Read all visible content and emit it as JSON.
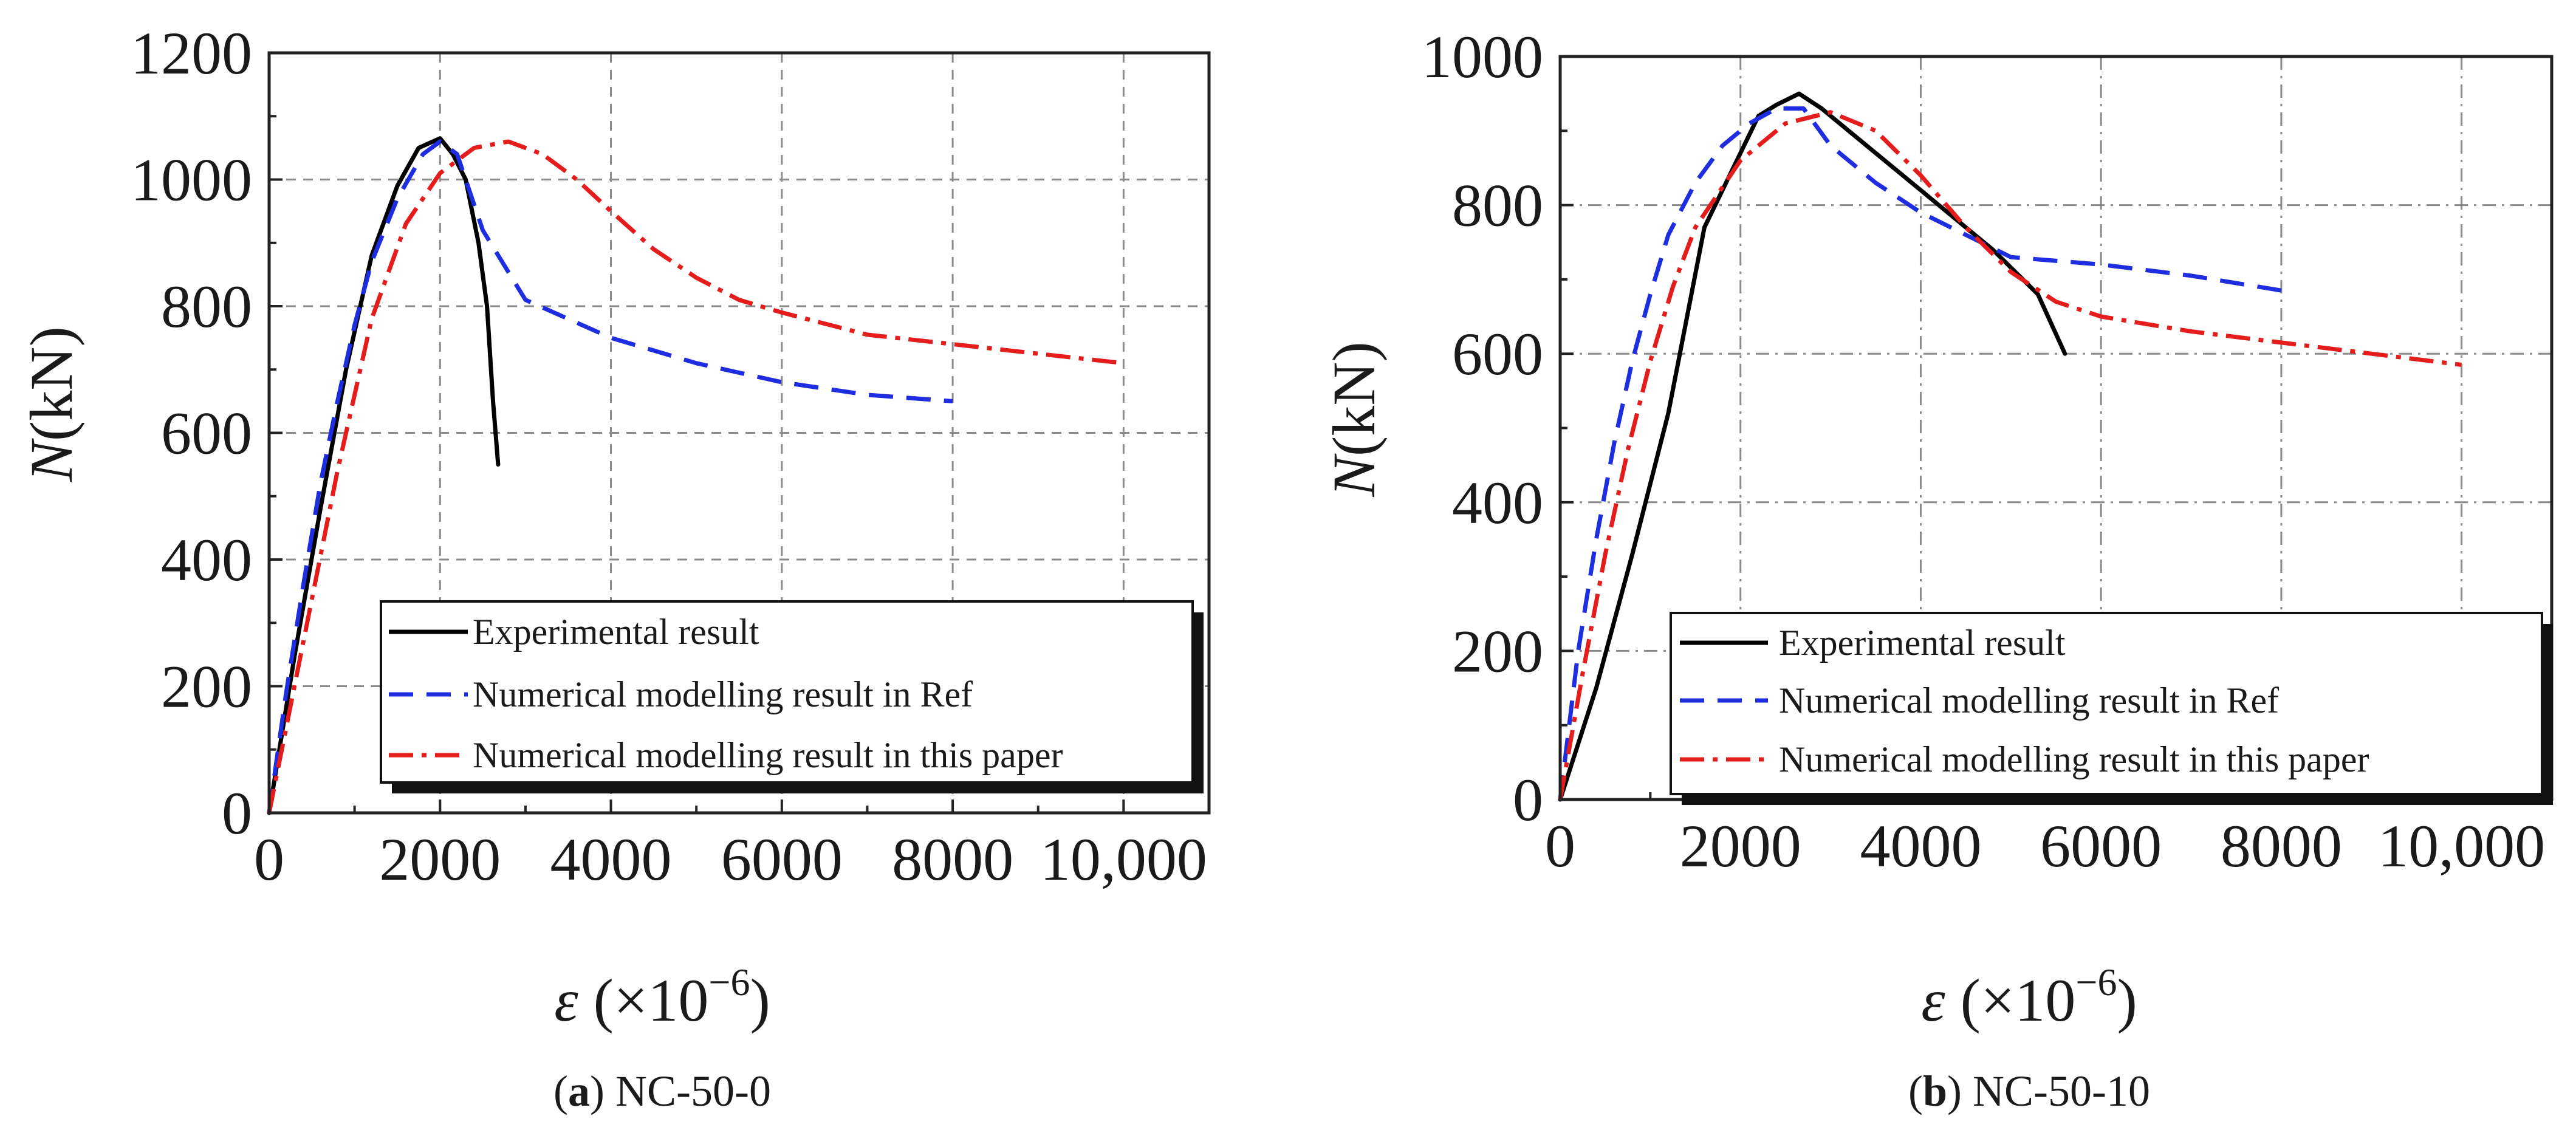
{
  "chart_data": [
    {
      "type": "line",
      "panel_id": "a",
      "caption_letter": "a",
      "caption_text": " NC-50-0",
      "xlabel_symbol": "ε",
      "xlabel_unit": " (×10",
      "xlabel_exp": "−6",
      "xlabel_close": ")",
      "ylabel_symbol": "N",
      "ylabel_unit": "(kN)",
      "xlim": [
        0,
        11000
      ],
      "ylim": [
        0,
        1200
      ],
      "x_ticks": [
        0,
        2000,
        4000,
        6000,
        8000,
        10000
      ],
      "x_tick_labels": [
        "0",
        "2000",
        "4000",
        "6000",
        "8000",
        "10,000"
      ],
      "y_ticks": [
        0,
        200,
        400,
        600,
        800,
        1000,
        1200
      ],
      "y_tick_labels": [
        "0",
        "200",
        "400",
        "600",
        "800",
        "1000",
        "1200"
      ],
      "grid": true,
      "legend_position": "bottom-right",
      "series": [
        {
          "name": "Experimental result",
          "color": "#000000",
          "dash": "solid",
          "x": [
            0,
            300,
            600,
            900,
            1200,
            1500,
            1750,
            2000,
            2150,
            2300,
            2450,
            2550,
            2620,
            2680
          ],
          "y": [
            0,
            250,
            480,
            700,
            880,
            990,
            1050,
            1065,
            1040,
            1000,
            900,
            800,
            650,
            550
          ]
        },
        {
          "name": "Numerical modelling result in Ref",
          "color": "#1f2de0",
          "dash": "dashed",
          "x": [
            0,
            200,
            400,
            600,
            800,
            1000,
            1200,
            1500,
            1800,
            2000,
            2200,
            2500,
            3000,
            3500,
            4000,
            5000,
            6000,
            7000,
            8000
          ],
          "y": [
            0,
            190,
            360,
            520,
            650,
            770,
            870,
            970,
            1040,
            1060,
            1040,
            920,
            810,
            780,
            750,
            710,
            680,
            660,
            650
          ]
        },
        {
          "name": "Numerical modelling result in this paper",
          "color": "#e51c1c",
          "dash": "dashdot",
          "x": [
            0,
            400,
            800,
            1200,
            1600,
            2000,
            2400,
            2800,
            3200,
            3600,
            4000,
            4500,
            5000,
            5500,
            6000,
            7000,
            8000,
            9000,
            10000
          ],
          "y": [
            0,
            270,
            540,
            780,
            930,
            1010,
            1050,
            1060,
            1040,
            1000,
            950,
            890,
            845,
            810,
            790,
            755,
            740,
            725,
            710
          ]
        }
      ]
    },
    {
      "type": "line",
      "panel_id": "b",
      "caption_letter": "b",
      "caption_text": " NC-50-10",
      "xlabel_symbol": "ε",
      "xlabel_unit": " (×10",
      "xlabel_exp": "−6",
      "xlabel_close": ")",
      "ylabel_symbol": "N",
      "ylabel_unit": "(kN)",
      "xlim": [
        0,
        11000
      ],
      "ylim": [
        0,
        1000
      ],
      "x_ticks": [
        0,
        2000,
        4000,
        6000,
        8000,
        10000
      ],
      "x_tick_labels": [
        "0",
        "2000",
        "4000",
        "6000",
        "8000",
        "10,000"
      ],
      "y_ticks": [
        0,
        200,
        400,
        600,
        800,
        1000
      ],
      "y_tick_labels": [
        "0",
        "200",
        "400",
        "600",
        "800",
        "1000"
      ],
      "grid": true,
      "legend_position": "bottom-right",
      "series": [
        {
          "name": "Experimental result",
          "color": "#000000",
          "dash": "solid",
          "x": [
            0,
            400,
            800,
            1200,
            1600,
            2000,
            2200,
            2400,
            2650,
            2900,
            3200,
            3600,
            4000,
            4400,
            4800,
            5300,
            5600
          ],
          "y": [
            0,
            150,
            330,
            520,
            770,
            870,
            920,
            935,
            950,
            930,
            900,
            860,
            820,
            780,
            740,
            680,
            600
          ]
        },
        {
          "name": "Numerical modelling result in Ref",
          "color": "#1f2de0",
          "dash": "dashed",
          "x": [
            0,
            200,
            400,
            600,
            800,
            1000,
            1200,
            1500,
            1800,
            2100,
            2400,
            2700,
            3000,
            3500,
            4000,
            4500,
            5000,
            6000,
            7000,
            8000
          ],
          "y": [
            0,
            200,
            350,
            480,
            590,
            680,
            760,
            830,
            880,
            910,
            930,
            930,
            880,
            830,
            790,
            760,
            730,
            720,
            705,
            685
          ]
        },
        {
          "name": "Numerical modelling result in this paper",
          "color": "#e51c1c",
          "dash": "dashdot",
          "x": [
            0,
            250,
            500,
            750,
            1000,
            1250,
            1500,
            2000,
            2500,
            3000,
            3500,
            4000,
            4500,
            5000,
            5500,
            6000,
            7000,
            8000,
            9000,
            10000
          ],
          "y": [
            0,
            170,
            330,
            470,
            590,
            690,
            770,
            860,
            910,
            925,
            900,
            840,
            770,
            710,
            670,
            650,
            630,
            615,
            600,
            585
          ]
        }
      ]
    }
  ]
}
